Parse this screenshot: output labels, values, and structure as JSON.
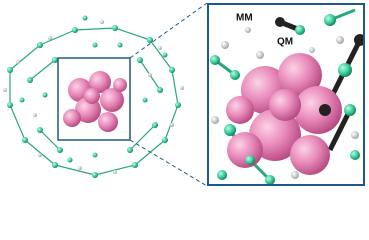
{
  "zoom_panel": {
    "labels": {
      "mm": "MM",
      "qm": "QM"
    }
  }
}
